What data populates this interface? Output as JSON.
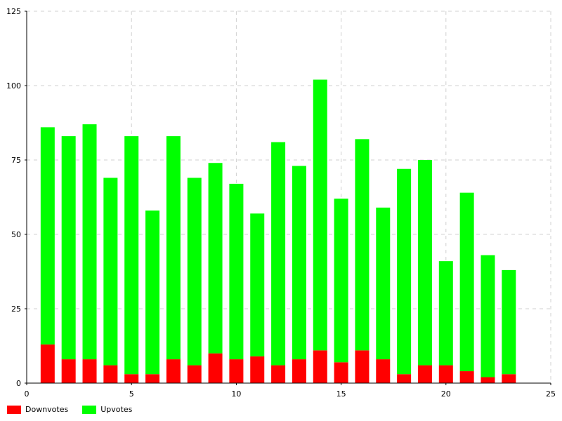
{
  "chart_data": {
    "type": "bar",
    "stacked": true,
    "x": [
      1,
      2,
      3,
      4,
      5,
      6,
      7,
      8,
      9,
      10,
      11,
      12,
      13,
      14,
      15,
      16,
      17,
      18,
      19,
      20,
      21,
      22,
      23
    ],
    "series": [
      {
        "name": "Downvotes",
        "color": "#ff0000",
        "values": [
          13,
          8,
          8,
          6,
          3,
          3,
          8,
          6,
          10,
          8,
          9,
          6,
          8,
          11,
          7,
          11,
          8,
          3,
          6,
          6,
          4,
          2,
          3
        ]
      },
      {
        "name": "Upvotes",
        "color": "#00ff00",
        "values": [
          73,
          75,
          79,
          63,
          80,
          55,
          75,
          63,
          64,
          59,
          48,
          75,
          65,
          91,
          55,
          71,
          51,
          69,
          69,
          35,
          60,
          41,
          35
        ]
      }
    ],
    "xlim": [
      0,
      25
    ],
    "ylim": [
      0,
      125
    ],
    "xticks": [
      "0",
      "5",
      "10",
      "15",
      "20",
      "25"
    ],
    "yticks": [
      "0",
      "25",
      "50",
      "75",
      "100",
      "125"
    ],
    "grid": true,
    "legend_position": "bottom-left"
  }
}
